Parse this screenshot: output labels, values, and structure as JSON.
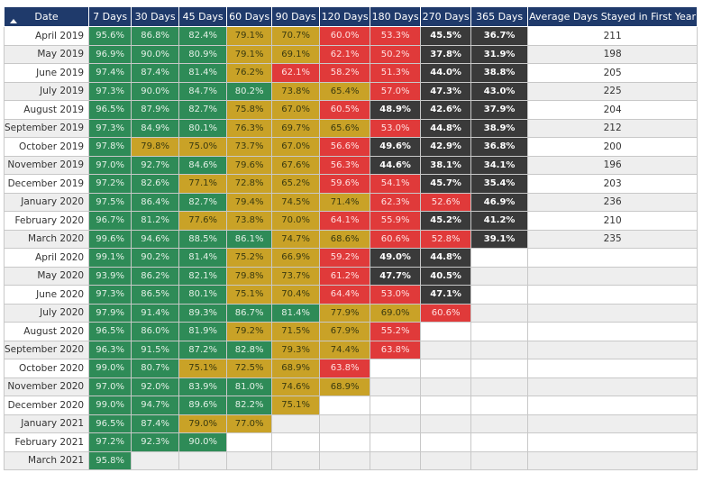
{
  "headers": [
    "Date",
    "7 Days",
    "30 Days",
    "45 Days",
    "60 Days",
    "90 Days",
    "120 Days",
    "180 Days",
    "270 Days",
    "365 Days",
    "Average Days Stayed in First Year"
  ],
  "colors": {
    "green": "#2e8b57",
    "yellow": "#c9a227",
    "red": "#e03a3a",
    "dark": "#3a3a3a",
    "header": "#1f3a6b"
  },
  "sort_icon": "sort-ascending-icon",
  "rows": [
    {
      "date": "April 2019",
      "values": [
        "95.6%",
        "86.8%",
        "82.4%",
        "79.1%",
        "70.7%",
        "60.0%",
        "53.3%",
        "45.5%",
        "36.7%"
      ],
      "colors": [
        "g",
        "g",
        "g",
        "y",
        "y",
        "r",
        "r",
        "k",
        "k"
      ],
      "avg": "211"
    },
    {
      "date": "May 2019",
      "values": [
        "96.9%",
        "90.0%",
        "80.9%",
        "79.1%",
        "69.1%",
        "62.1%",
        "50.2%",
        "37.8%",
        "31.9%"
      ],
      "colors": [
        "g",
        "g",
        "g",
        "y",
        "y",
        "r",
        "r",
        "k",
        "k"
      ],
      "avg": "198"
    },
    {
      "date": "June 2019",
      "values": [
        "97.4%",
        "87.4%",
        "81.4%",
        "76.2%",
        "62.1%",
        "58.2%",
        "51.3%",
        "44.0%",
        "38.8%"
      ],
      "colors": [
        "g",
        "g",
        "g",
        "y",
        "r",
        "r",
        "r",
        "k",
        "k"
      ],
      "avg": "205"
    },
    {
      "date": "July 2019",
      "values": [
        "97.3%",
        "90.0%",
        "84.7%",
        "80.2%",
        "73.8%",
        "65.4%",
        "57.0%",
        "47.3%",
        "43.0%"
      ],
      "colors": [
        "g",
        "g",
        "g",
        "g",
        "y",
        "y",
        "r",
        "k",
        "k"
      ],
      "avg": "225"
    },
    {
      "date": "August 2019",
      "values": [
        "96.5%",
        "87.9%",
        "82.7%",
        "75.8%",
        "67.0%",
        "60.5%",
        "48.9%",
        "42.6%",
        "37.9%"
      ],
      "colors": [
        "g",
        "g",
        "g",
        "y",
        "y",
        "r",
        "k",
        "k",
        "k"
      ],
      "avg": "204"
    },
    {
      "date": "September 2019",
      "values": [
        "97.3%",
        "84.9%",
        "80.1%",
        "76.3%",
        "69.7%",
        "65.6%",
        "53.0%",
        "44.8%",
        "38.9%"
      ],
      "colors": [
        "g",
        "g",
        "g",
        "y",
        "y",
        "y",
        "r",
        "k",
        "k"
      ],
      "avg": "212"
    },
    {
      "date": "October 2019",
      "values": [
        "97.8%",
        "79.8%",
        "75.0%",
        "73.7%",
        "67.0%",
        "56.6%",
        "49.6%",
        "42.9%",
        "36.8%"
      ],
      "colors": [
        "g",
        "y",
        "y",
        "y",
        "y",
        "r",
        "k",
        "k",
        "k"
      ],
      "avg": "200"
    },
    {
      "date": "November 2019",
      "values": [
        "97.0%",
        "92.7%",
        "84.6%",
        "79.6%",
        "67.6%",
        "56.3%",
        "44.6%",
        "38.1%",
        "34.1%"
      ],
      "colors": [
        "g",
        "g",
        "g",
        "y",
        "y",
        "r",
        "k",
        "k",
        "k"
      ],
      "avg": "196"
    },
    {
      "date": "December 2019",
      "values": [
        "97.2%",
        "82.6%",
        "77.1%",
        "72.8%",
        "65.2%",
        "59.6%",
        "54.1%",
        "45.7%",
        "35.4%"
      ],
      "colors": [
        "g",
        "g",
        "y",
        "y",
        "y",
        "r",
        "r",
        "k",
        "k"
      ],
      "avg": "203"
    },
    {
      "date": "January 2020",
      "values": [
        "97.5%",
        "86.4%",
        "82.7%",
        "79.4%",
        "74.5%",
        "71.4%",
        "62.3%",
        "52.6%",
        "46.9%"
      ],
      "colors": [
        "g",
        "g",
        "g",
        "y",
        "y",
        "y",
        "r",
        "r",
        "k"
      ],
      "avg": "236"
    },
    {
      "date": "February 2020",
      "values": [
        "96.7%",
        "81.2%",
        "77.6%",
        "73.8%",
        "70.0%",
        "64.1%",
        "55.9%",
        "45.2%",
        "41.2%"
      ],
      "colors": [
        "g",
        "g",
        "y",
        "y",
        "y",
        "r",
        "r",
        "k",
        "k"
      ],
      "avg": "210"
    },
    {
      "date": "March 2020",
      "values": [
        "99.6%",
        "94.6%",
        "88.5%",
        "86.1%",
        "74.7%",
        "68.6%",
        "60.6%",
        "52.8%",
        "39.1%"
      ],
      "colors": [
        "g",
        "g",
        "g",
        "g",
        "y",
        "y",
        "r",
        "r",
        "k"
      ],
      "avg": "235"
    },
    {
      "date": "April 2020",
      "values": [
        "99.1%",
        "90.2%",
        "81.4%",
        "75.2%",
        "66.9%",
        "59.2%",
        "49.0%",
        "44.8%",
        ""
      ],
      "colors": [
        "g",
        "g",
        "g",
        "y",
        "y",
        "r",
        "k",
        "k",
        "e"
      ],
      "avg": ""
    },
    {
      "date": "May 2020",
      "values": [
        "93.9%",
        "86.2%",
        "82.1%",
        "79.8%",
        "73.7%",
        "61.2%",
        "47.7%",
        "40.5%",
        ""
      ],
      "colors": [
        "g",
        "g",
        "g",
        "y",
        "y",
        "r",
        "k",
        "k",
        "e"
      ],
      "avg": ""
    },
    {
      "date": "June 2020",
      "values": [
        "97.3%",
        "86.5%",
        "80.1%",
        "75.1%",
        "70.4%",
        "64.4%",
        "53.0%",
        "47.1%",
        ""
      ],
      "colors": [
        "g",
        "g",
        "g",
        "y",
        "y",
        "r",
        "r",
        "k",
        "e"
      ],
      "avg": ""
    },
    {
      "date": "July 2020",
      "values": [
        "97.9%",
        "91.4%",
        "89.3%",
        "86.7%",
        "81.4%",
        "77.9%",
        "69.0%",
        "60.6%",
        ""
      ],
      "colors": [
        "g",
        "g",
        "g",
        "g",
        "g",
        "y",
        "y",
        "r",
        "e"
      ],
      "avg": ""
    },
    {
      "date": "August 2020",
      "values": [
        "96.5%",
        "86.0%",
        "81.9%",
        "79.2%",
        "71.5%",
        "67.9%",
        "55.2%",
        "",
        ""
      ],
      "colors": [
        "g",
        "g",
        "g",
        "y",
        "y",
        "y",
        "r",
        "e",
        "e"
      ],
      "avg": ""
    },
    {
      "date": "September 2020",
      "values": [
        "96.3%",
        "91.5%",
        "87.2%",
        "82.8%",
        "79.3%",
        "74.4%",
        "63.8%",
        "",
        ""
      ],
      "colors": [
        "g",
        "g",
        "g",
        "g",
        "y",
        "y",
        "r",
        "e",
        "e"
      ],
      "avg": ""
    },
    {
      "date": "October 2020",
      "values": [
        "99.0%",
        "80.7%",
        "75.1%",
        "72.5%",
        "68.9%",
        "63.8%",
        "",
        "",
        ""
      ],
      "colors": [
        "g",
        "g",
        "y",
        "y",
        "y",
        "r",
        "e",
        "e",
        "e"
      ],
      "avg": ""
    },
    {
      "date": "November 2020",
      "values": [
        "97.0%",
        "92.0%",
        "83.9%",
        "81.0%",
        "74.6%",
        "68.9%",
        "",
        "",
        ""
      ],
      "colors": [
        "g",
        "g",
        "g",
        "g",
        "y",
        "y",
        "e",
        "e",
        "e"
      ],
      "avg": ""
    },
    {
      "date": "December 2020",
      "values": [
        "99.0%",
        "94.7%",
        "89.6%",
        "82.2%",
        "75.1%",
        "",
        "",
        "",
        ""
      ],
      "colors": [
        "g",
        "g",
        "g",
        "g",
        "y",
        "e",
        "e",
        "e",
        "e"
      ],
      "avg": ""
    },
    {
      "date": "January 2021",
      "values": [
        "96.5%",
        "87.4%",
        "79.0%",
        "77.0%",
        "",
        "",
        "",
        "",
        ""
      ],
      "colors": [
        "g",
        "g",
        "y",
        "y",
        "e",
        "e",
        "e",
        "e",
        "e"
      ],
      "avg": ""
    },
    {
      "date": "February 2021",
      "values": [
        "97.2%",
        "92.3%",
        "90.0%",
        "",
        "",
        "",
        "",
        "",
        ""
      ],
      "colors": [
        "g",
        "g",
        "g",
        "e",
        "e",
        "e",
        "e",
        "e",
        "e"
      ],
      "avg": ""
    },
    {
      "date": "March 2021",
      "values": [
        "95.8%",
        "",
        "",
        "",
        "",
        "",
        "",
        "",
        ""
      ],
      "colors": [
        "g",
        "e",
        "e",
        "e",
        "e",
        "e",
        "e",
        "e",
        "e"
      ],
      "avg": ""
    }
  ]
}
